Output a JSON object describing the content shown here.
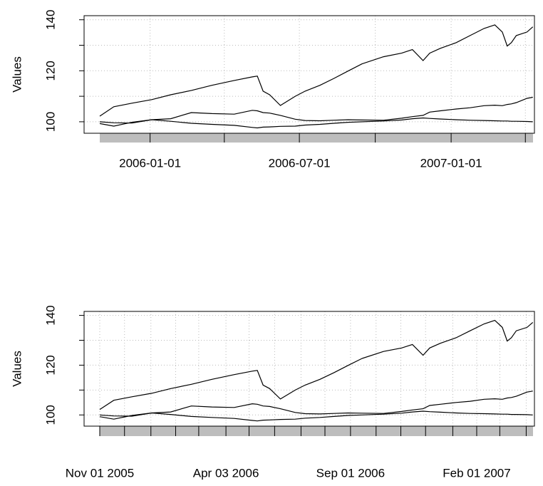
{
  "chart_data": [
    {
      "type": "line",
      "ylabel": "Values",
      "x": [
        "2005-11-01",
        "2005-11-18",
        "2005-12-10",
        "2006-01-03",
        "2006-01-26",
        "2006-02-20",
        "2006-03-17",
        "2006-04-13",
        "2006-05-05",
        "2006-05-11",
        "2006-05-18",
        "2006-05-26",
        "2006-06-08",
        "2006-06-26",
        "2006-07-08",
        "2006-07-26",
        "2006-08-12",
        "2006-08-29",
        "2006-09-15",
        "2006-10-11",
        "2006-11-02",
        "2006-11-15",
        "2006-11-28",
        "2006-12-06",
        "2006-12-19",
        "2007-01-07",
        "2007-01-24",
        "2007-02-10",
        "2007-02-23",
        "2007-03-04",
        "2007-03-10",
        "2007-03-15",
        "2007-03-21",
        "2007-04-03",
        "2007-04-10"
      ],
      "series": [
        {
          "color": "#000000",
          "values": [
            102.2,
            105.9,
            107.3,
            108.7,
            110.6,
            112.3,
            114.3,
            116.2,
            117.6,
            117.9,
            112,
            110.6,
            106.4,
            110,
            112,
            114.3,
            117,
            119.9,
            122.7,
            125.5,
            126.9,
            128.3,
            124,
            126.9,
            128.8,
            131,
            133.8,
            136.6,
            138,
            135.2,
            129.7,
            131,
            133.8,
            135.2,
            137.2
          ]
        },
        {
          "color": "#000000",
          "values": [
            100,
            99.6,
            99.5,
            100.8,
            101.2,
            103.6,
            103.2,
            103,
            104.5,
            104.3,
            103.6,
            103.4,
            102.5,
            101,
            100.5,
            100.4,
            100.6,
            100.8,
            100.7,
            100.6,
            101.4,
            102,
            102.5,
            103.8,
            104.3,
            105,
            105.5,
            106.3,
            106.5,
            106.3,
            106.8,
            107,
            107.5,
            109.2,
            109.6
          ]
        },
        {
          "color": "#000000",
          "values": [
            99.3,
            98.3,
            99.8,
            100.8,
            100.2,
            99.4,
            99,
            98.6,
            97.8,
            97.6,
            97.9,
            98,
            98.2,
            98.3,
            98.7,
            99,
            99.4,
            99.8,
            100,
            100.3,
            100.7,
            101.2,
            101.5,
            101.3,
            101.1,
            100.8,
            100.6,
            100.5,
            100.4,
            100.3,
            100.3,
            100.2,
            100.2,
            100.1,
            100
          ]
        }
      ],
      "xlim": [
        "2005-10-13",
        "2007-04-12"
      ],
      "ylim": [
        95.5,
        141.6
      ],
      "yticks": [
        100,
        120,
        140
      ],
      "yminor": [
        110,
        130
      ],
      "xticks": [
        "2006-01-01",
        "2006-07-01",
        "2007-01-01"
      ],
      "xminor": [
        "2006-04-01",
        "2006-10-01",
        "2007-04-01"
      ],
      "grid": true
    },
    {
      "type": "line",
      "ylabel": "Values",
      "x": [
        "2005-11-01",
        "2005-11-18",
        "2005-12-10",
        "2006-01-03",
        "2006-01-26",
        "2006-02-20",
        "2006-03-17",
        "2006-04-13",
        "2006-05-05",
        "2006-05-11",
        "2006-05-18",
        "2006-05-26",
        "2006-06-08",
        "2006-06-26",
        "2006-07-08",
        "2006-07-26",
        "2006-08-12",
        "2006-08-29",
        "2006-09-15",
        "2006-10-11",
        "2006-11-02",
        "2006-11-15",
        "2006-11-28",
        "2006-12-06",
        "2006-12-19",
        "2007-01-07",
        "2007-01-24",
        "2007-02-10",
        "2007-02-23",
        "2007-03-04",
        "2007-03-10",
        "2007-03-15",
        "2007-03-21",
        "2007-04-03",
        "2007-04-10"
      ],
      "series": [
        {
          "color": "#000000",
          "values": [
            102.2,
            105.9,
            107.3,
            108.7,
            110.6,
            112.3,
            114.3,
            116.2,
            117.6,
            117.9,
            112,
            110.6,
            106.4,
            110,
            112,
            114.3,
            117,
            119.9,
            122.7,
            125.5,
            126.9,
            128.3,
            124,
            126.9,
            128.8,
            131,
            133.8,
            136.6,
            138,
            135.2,
            129.7,
            131,
            133.8,
            135.2,
            137.2
          ]
        },
        {
          "color": "#000000",
          "values": [
            100,
            99.6,
            99.5,
            100.8,
            101.2,
            103.6,
            103.2,
            103,
            104.5,
            104.3,
            103.6,
            103.4,
            102.5,
            101,
            100.5,
            100.4,
            100.6,
            100.8,
            100.7,
            100.6,
            101.4,
            102,
            102.5,
            103.8,
            104.3,
            105,
            105.5,
            106.3,
            106.5,
            106.3,
            106.8,
            107,
            107.5,
            109.2,
            109.6
          ]
        },
        {
          "color": "#000000",
          "values": [
            99.3,
            98.3,
            99.8,
            100.8,
            100.2,
            99.4,
            99,
            98.6,
            97.8,
            97.6,
            97.9,
            98,
            98.2,
            98.3,
            98.7,
            99,
            99.4,
            99.8,
            100,
            100.3,
            100.7,
            101.2,
            101.5,
            101.3,
            101.1,
            100.8,
            100.6,
            100.5,
            100.4,
            100.3,
            100.3,
            100.2,
            100.2,
            100.1,
            100
          ]
        }
      ],
      "xlim": [
        "2005-10-13",
        "2007-04-12"
      ],
      "ylim": [
        95.5,
        141.6
      ],
      "yticks": [
        100,
        120,
        140
      ],
      "yminor": [
        110,
        130
      ],
      "xticks": [
        {
          "value": "2005-11-01",
          "label": "Nov 01 2005"
        },
        {
          "value": "2006-04-03",
          "label": "Apr 03 2006"
        },
        {
          "value": "2006-09-01",
          "label": "Sep 01 2006"
        },
        {
          "value": "2007-02-01",
          "label": "Feb 01 2007"
        }
      ],
      "xminor": [
        "2005-12-01",
        "2006-01-02",
        "2006-02-01",
        "2006-03-01",
        "2006-05-01",
        "2006-06-01",
        "2006-07-03",
        "2006-08-01",
        "2006-10-02",
        "2006-11-01",
        "2006-12-01",
        "2007-01-03",
        "2007-03-01",
        "2007-04-02"
      ],
      "grid": true
    }
  ]
}
